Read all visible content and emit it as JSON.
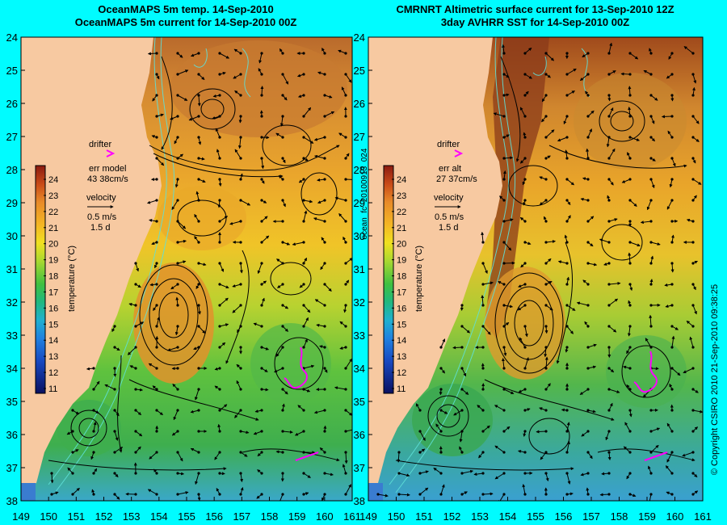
{
  "panels": [
    {
      "title_line1": "OceanMAPS 5m temp. 14-Sep-2010",
      "title_line2": "OceanMAPS 5m current for 14-Sep-2010 00Z",
      "drifter_label": "drifter",
      "err_label": "err model",
      "err_value": "43 38cm/s",
      "velocity_label": "velocity",
      "velocity_value": "0.5 m/s",
      "velocity_time": "1.5 d"
    },
    {
      "title_line1": "CMRNRT Altimetric surface current for 13-Sep-2010 12Z",
      "title_line2": "3day AVHRR SST for 14-Sep-2010 00Z",
      "drifter_label": "drifter",
      "err_label": "err alt",
      "err_value": "27 37cm/s",
      "velocity_label": "velocity",
      "velocity_value": "0.5 m/s",
      "velocity_time": "1.5 d"
    }
  ],
  "colorbar": {
    "label": "temperature (°C)",
    "ticks": [
      "24",
      "23",
      "22",
      "21",
      "20",
      "19",
      "18",
      "17",
      "16",
      "15",
      "14",
      "13",
      "12",
      "11"
    ]
  },
  "lat_ticks": [
    "24",
    "25",
    "26",
    "27",
    "28",
    "29",
    "30",
    "31",
    "32",
    "33",
    "34",
    "35",
    "36",
    "37",
    "38"
  ],
  "lon_ticks": [
    "149",
    "150",
    "151",
    "152",
    "153",
    "154",
    "155",
    "156",
    "157",
    "158",
    "159",
    "160",
    "161"
  ],
  "side_label_mid": "ocean_fc_20100913_024",
  "side_label_right": "© Copyright CSIRO 2010   21-Sep-2010 09:38:25",
  "colors": {
    "background": "#00fcff",
    "land": "#f7c9a1",
    "drifter": "#ff00ff"
  }
}
